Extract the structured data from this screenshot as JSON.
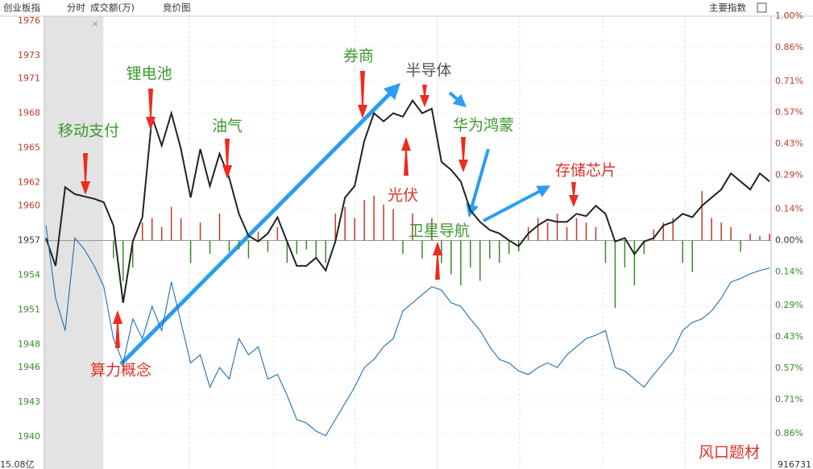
{
  "header": {
    "index": "创业板指",
    "mode": "分时",
    "volume_label": "成交额(万)",
    "auction": "竞价图",
    "menu": "主要指数"
  },
  "chart_data": {
    "type": "line",
    "ylim": [
      1937.5,
      1977.1
    ],
    "yticks": [
      1976,
      1973,
      1971,
      1968,
      1965,
      1962,
      1960,
      1957,
      1954,
      1951,
      1948,
      1946,
      1943,
      1940
    ],
    "y2lim": [
      -1.004,
      1.036
    ],
    "y2ticks": [
      {
        "value": 1.0,
        "label": "1.00%"
      },
      {
        "value": 0.86,
        "label": "0.86%"
      },
      {
        "value": 0.71,
        "label": "0.71%"
      },
      {
        "value": 0.57,
        "label": "0.57%"
      },
      {
        "value": 0.43,
        "label": "0.43%"
      },
      {
        "value": 0.29,
        "label": "0.29%"
      },
      {
        "value": 0.14,
        "label": "0.14%"
      },
      {
        "value": 0,
        "label": "0.00%"
      },
      {
        "value": -0.14,
        "label": "0.14%"
      },
      {
        "value": -0.29,
        "label": "0.29%"
      },
      {
        "value": -0.43,
        "label": "0.43%"
      },
      {
        "value": -0.57,
        "label": "0.57%"
      },
      {
        "value": -0.71,
        "label": "0.71%"
      },
      {
        "value": -0.86,
        "label": "0.86%"
      }
    ],
    "series": [
      {
        "color": "#222222",
        "values": [
          1957.2,
          1954.8,
          1961.6,
          1961.0,
          1960.8,
          1960.6,
          1960.3,
          1958.3,
          1951.6,
          1956.9,
          1959.0,
          1967.7,
          1965.2,
          1968.0,
          1964.9,
          1960.7,
          1964.9,
          1961.7,
          1964.5,
          1962.4,
          1959.3,
          1957.4,
          1956.9,
          1957.6,
          1959.0,
          1956.9,
          1954.8,
          1954.8,
          1955.5,
          1954.4,
          1956.9,
          1960.7,
          1961.7,
          1965.6,
          1968.0,
          1967.3,
          1968.0,
          1967.7,
          1969.1,
          1968.0,
          1968.4,
          1963.8,
          1963.1,
          1962.1,
          1959.6,
          1958.6,
          1957.9,
          1957.6,
          1957.0,
          1956.5,
          1957.6,
          1958.3,
          1958.8,
          1958.6,
          1958.6,
          1959.3,
          1959.1,
          1960.0,
          1959.3,
          1956.9,
          1957.2,
          1955.8,
          1956.9,
          1957.2,
          1958.3,
          1958.6,
          1959.3,
          1959.0,
          1960.0,
          1960.7,
          1961.4,
          1962.8,
          1962.1,
          1961.4,
          1962.8,
          1962.1
        ]
      },
      {
        "color": "#1f6fb5",
        "values": [
          1958.3,
          1952.0,
          1949.2,
          1957.2,
          1956.2,
          1954.8,
          1953.0,
          1948.5,
          1946.4,
          1950.2,
          1948.5,
          1951.3,
          1949.2,
          1953.4,
          1949.9,
          1946.4,
          1947.1,
          1944.3,
          1946.0,
          1945.0,
          1948.5,
          1947.1,
          1947.8,
          1945.0,
          1945.4,
          1943.6,
          1941.5,
          1941.2,
          1940.5,
          1940.1,
          1941.5,
          1942.9,
          1944.3,
          1946.0,
          1946.7,
          1947.8,
          1948.5,
          1950.9,
          1951.6,
          1952.3,
          1953.0,
          1952.7,
          1951.6,
          1951.3,
          1950.2,
          1949.2,
          1947.8,
          1946.7,
          1946.4,
          1945.7,
          1945.4,
          1946.0,
          1946.4,
          1946.0,
          1947.1,
          1947.8,
          1948.5,
          1948.8,
          1949.2,
          1946.0,
          1945.7,
          1945.0,
          1944.3,
          1945.4,
          1946.4,
          1947.4,
          1949.2,
          1949.9,
          1950.2,
          1950.9,
          1952.0,
          1953.4,
          1953.7,
          1954.1,
          1954.4,
          1954.6
        ]
      }
    ],
    "volume": {
      "axis": "y2",
      "up_color": "#c0392b",
      "down_color": "#3a8a2a",
      "values": [
        null,
        null,
        null,
        null,
        null,
        null,
        null,
        -0.08,
        -0.18,
        -0.12,
        0.08,
        0.1,
        0.06,
        0.15,
        0.1,
        -0.1,
        0.08,
        -0.06,
        0.12,
        -0.05,
        -0.04,
        -0.08,
        0.04,
        -0.05,
        0.06,
        -0.1,
        -0.06,
        -0.04,
        -0.08,
        -0.1,
        0.12,
        0.15,
        0.1,
        0.18,
        0.2,
        0.16,
        0.14,
        -0.06,
        0.12,
        -0.08,
        0.1,
        -0.1,
        -0.15,
        -0.2,
        -0.12,
        -0.18,
        -0.08,
        -0.1,
        -0.06,
        -0.05,
        0.06,
        0.1,
        0.08,
        0.12,
        0.06,
        0.1,
        0.08,
        0.06,
        -0.1,
        -0.3,
        -0.12,
        -0.2,
        -0.06,
        0.05,
        0.08,
        0.1,
        -0.1,
        -0.14,
        0.22,
        0.1,
        0.08,
        0.06,
        -0.05,
        0.03,
        0.02,
        0.03
      ]
    },
    "annotations": [
      {
        "text": "移动支付",
        "color": "#3a9a2a"
      },
      {
        "text": "锂电池",
        "color": "#3a9a2a"
      },
      {
        "text": "油气",
        "color": "#3a9a2a"
      },
      {
        "text": "券商",
        "color": "#3a9a2a"
      },
      {
        "text": "半导体",
        "color": "#555555"
      },
      {
        "text": "华为鸿蒙",
        "color": "#3a9a2a"
      },
      {
        "text": "存储芯片",
        "color": "#e0302a"
      },
      {
        "text": "光伏",
        "color": "#e0302a"
      },
      {
        "text": "卫星导航",
        "color": "#3a9a2a"
      },
      {
        "text": "算力概念",
        "color": "#e0302a"
      },
      {
        "text": "风口题材",
        "color": "#e0302a"
      }
    ],
    "volume_scale": "15.08亿",
    "volume_total": "916731"
  }
}
